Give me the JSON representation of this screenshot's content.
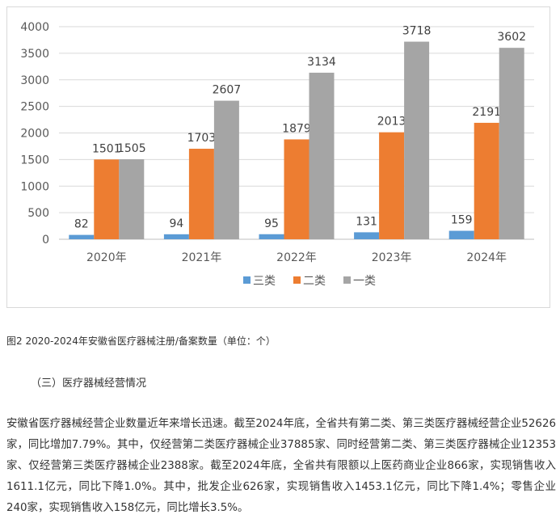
{
  "chart_data": {
    "type": "bar",
    "categories": [
      "2020年",
      "2021年",
      "2022年",
      "2023年",
      "2024年"
    ],
    "series": [
      {
        "name": "三类",
        "values": [
          82,
          94,
          95,
          131,
          159
        ],
        "color": "#5b9bd5"
      },
      {
        "name": "二类",
        "values": [
          1501,
          1703,
          1879,
          2013,
          2191
        ],
        "color": "#ed7d31"
      },
      {
        "name": "一类",
        "values": [
          1505,
          2607,
          3134,
          3718,
          3602
        ],
        "color": "#a5a5a5"
      }
    ],
    "y_ticks": [
      0,
      500,
      1000,
      1500,
      2000,
      2500,
      3000,
      3500,
      4000
    ],
    "ylim": [
      0,
      4000
    ],
    "grid": true,
    "legend_position": "bottom",
    "data_labels": true
  },
  "caption": "图2  2020-2024年安徽省医疗器械注册/备案数量（单位：个）",
  "section_heading": "（三）医疗器械经营情况",
  "paragraph": "安徽省医疗器械经营企业数量近年来增长迅速。截至2024年底，全省共有第二类、第三类医疗器械经营企业52626家，同比增加7.79%。其中，仅经营第二类医疗器械企业37885家、同时经营第二类、第三类医疗器械企业12353家、仅经营第三类医疗器械企业2388家。截至2024年底，全省共有限额以上医药商业企业866家，实现销售收入1611.1亿元，同比下降1.0%。其中，批发企业626家，实现销售收入1453.1亿元，同比下降1.4%；零售企业240家，实现销售收入158亿元，同比增长3.5%。"
}
